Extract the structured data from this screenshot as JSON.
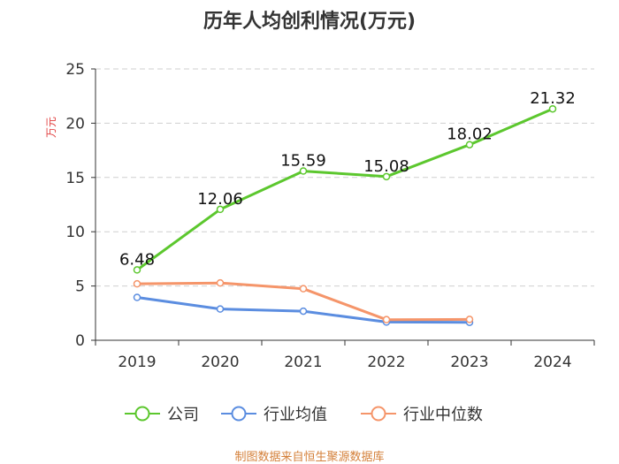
{
  "chart_data": {
    "type": "line",
    "title": "历年人均创利情况(万元)",
    "ylabel": "万元",
    "xlabel": "",
    "categories": [
      "2019",
      "2020",
      "2021",
      "2022",
      "2023",
      "2024"
    ],
    "ylim": [
      0,
      25
    ],
    "yticks": [
      0,
      5,
      10,
      15,
      20,
      25
    ],
    "grid": true,
    "legend_position": "bottom",
    "series": [
      {
        "name": "公司",
        "color": "#5cc72e",
        "values": [
          6.48,
          12.06,
          15.59,
          15.08,
          18.02,
          21.32
        ],
        "labels": [
          "6.48",
          "12.06",
          "15.59",
          "15.08",
          "18.02",
          "21.32"
        ]
      },
      {
        "name": "行业均值",
        "color": "#5b8de0",
        "values": [
          3.95,
          2.88,
          2.68,
          1.68,
          1.65,
          null
        ],
        "labels": null
      },
      {
        "name": "行业中位数",
        "color": "#f5956a",
        "values": [
          5.2,
          5.28,
          4.75,
          1.9,
          1.92,
          null
        ],
        "labels": null
      }
    ]
  },
  "source": "制图数据来自恒生聚源数据库"
}
